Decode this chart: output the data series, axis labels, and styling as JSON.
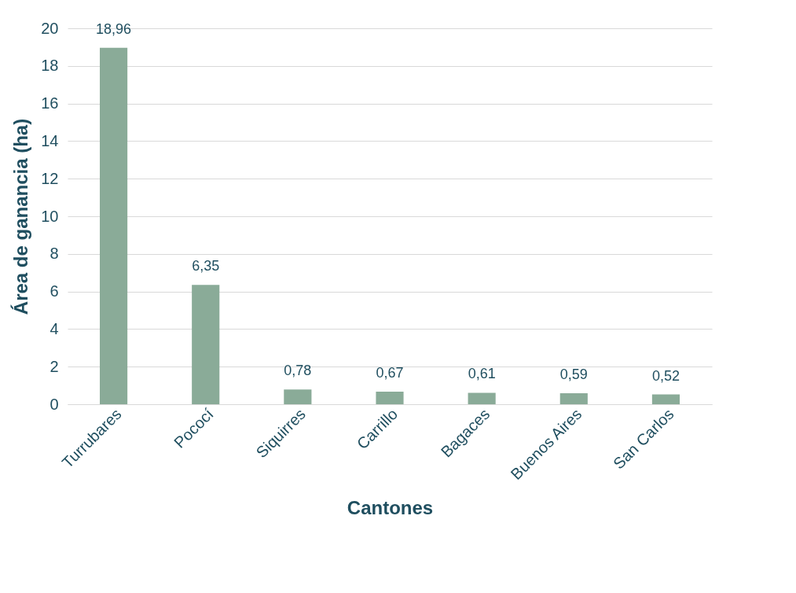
{
  "chart_data": {
    "type": "bar",
    "xlabel": "Cantones",
    "ylabel": "Área de ganancia (ha)",
    "categories": [
      "Turrubares",
      "Pococí",
      "Siquirres",
      "Carrillo",
      "Bagaces",
      "Buenos Aires",
      "San Carlos"
    ],
    "values": [
      18.96,
      6.35,
      0.78,
      0.67,
      0.61,
      0.59,
      0.52
    ],
    "value_labels": [
      "18,96",
      "6,35",
      "0,78",
      "0,67",
      "0,61",
      "0,59",
      "0,52"
    ],
    "color": "#8aab98",
    "ylim": [
      0,
      20
    ],
    "yticks": [
      0,
      2,
      4,
      6,
      8,
      10,
      12,
      14,
      16,
      18,
      20
    ],
    "grid": "y"
  }
}
